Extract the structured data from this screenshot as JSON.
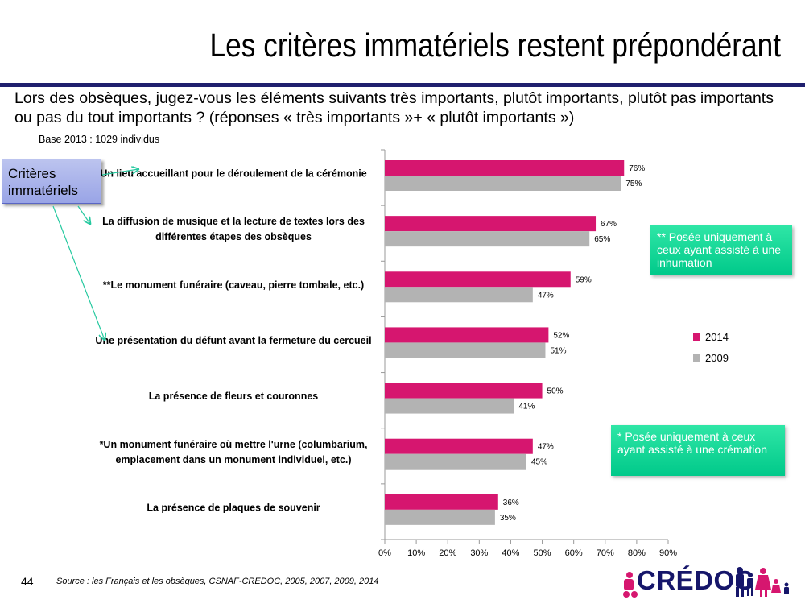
{
  "slide": {
    "title": "Les critères immatériels restent prépondérant",
    "question": "Lors des obsèques, jugez-vous les éléments suivants très importants, plutôt importants, plutôt pas importants ou pas du tout importants ? (réponses « très importants »+ « plutôt importants »)",
    "base": "Base 2013 : 1029 individus",
    "category_box": "Critères immatériels",
    "note_inhumation": "** Posée uniquement à ceux ayant assisté à une inhumation",
    "note_cremation": "* Posée uniquement à ceux ayant assisté à une crémation",
    "source": "Source : les Français et les obsèques, CSNAF-CREDOC, 2005, 2007, 2009, 2014",
    "page_number": "44",
    "logo": "CRÉDOC"
  },
  "colors": {
    "series_2014": "#d6166f",
    "series_2009": "#b3b3b3",
    "title_rule": "#1f1f6e",
    "arrow": "#27c9a0"
  },
  "icons": [
    "arrow-icon",
    "family-icon"
  ],
  "chart_data": {
    "type": "bar",
    "orientation": "horizontal",
    "categories": [
      "Un lieu accueillant pour le déroulement de la cérémonie",
      "La diffusion de musique et la lecture de textes lors des différentes étapes des obsèques",
      "**Le monument funéraire (caveau, pierre tombale, etc.)",
      "Une présentation du défunt avant la fermeture du cercueil",
      "La présence de fleurs et couronnes",
      "*Un monument funéraire où mettre l'urne (columbarium, emplacement dans un monument individuel, etc.)",
      "La présence de plaques de souvenir"
    ],
    "series": [
      {
        "name": "2014",
        "values": [
          76,
          67,
          59,
          52,
          50,
          47,
          36
        ],
        "labels": [
          "76%",
          "67%",
          "59%",
          "52%",
          "50%",
          "47%",
          "36%"
        ]
      },
      {
        "name": "2009",
        "values": [
          75,
          65,
          47,
          51,
          41,
          45,
          35
        ],
        "labels": [
          "75%",
          "65%",
          "47%",
          "51%",
          "41%",
          "45%",
          "35%"
        ]
      }
    ],
    "xlim": [
      0,
      90
    ],
    "xticks": [
      "0%",
      "10%",
      "20%",
      "30%",
      "40%",
      "50%",
      "60%",
      "70%",
      "80%",
      "90%"
    ],
    "legend": "right",
    "grid": false
  }
}
